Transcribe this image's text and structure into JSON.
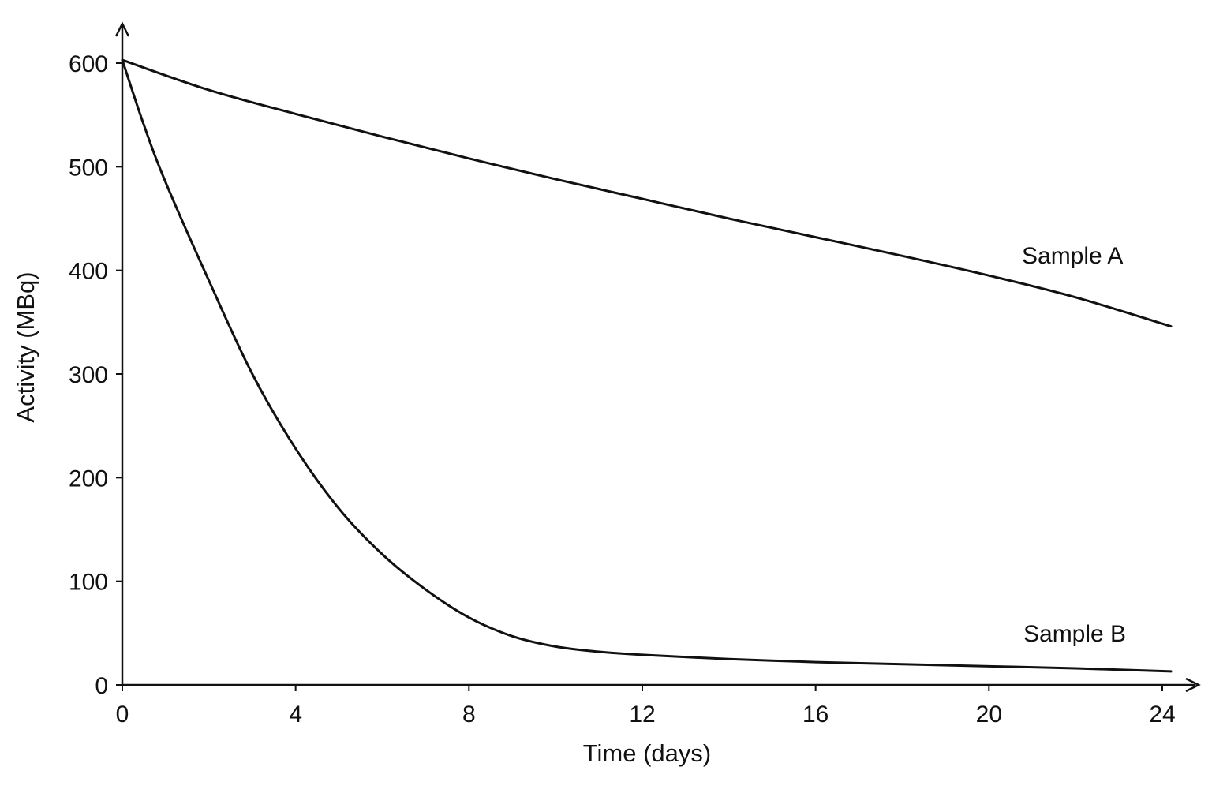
{
  "chart_data": {
    "type": "line",
    "title": "",
    "xlabel": "Time (days)",
    "ylabel": "Activity (MBq)",
    "xlim": [
      0,
      24
    ],
    "ylim": [
      0,
      600
    ],
    "grid": false,
    "legend": "none",
    "x_ticks": [
      "0",
      "4",
      "8",
      "12",
      "16",
      "20",
      "24"
    ],
    "y_ticks": [
      "0",
      "100",
      "200",
      "300",
      "400",
      "500",
      "600"
    ],
    "series": [
      {
        "name": "Sample A",
        "x": [
          0,
          2,
          4,
          6,
          8,
          10,
          12,
          14,
          16,
          18,
          20,
          22,
          24.2
        ],
        "y": [
          603,
          574,
          551,
          529,
          508,
          488,
          469,
          450,
          432,
          414,
          395,
          374,
          346
        ]
      },
      {
        "name": "Sample B",
        "x": [
          0,
          0.5,
          1,
          2,
          3,
          4,
          5,
          6,
          7,
          8,
          9,
          10,
          11,
          12,
          14,
          16,
          18,
          20,
          22,
          24.2
        ],
        "y": [
          603,
          540,
          485,
          390,
          300,
          228,
          170,
          126,
          92,
          65,
          47,
          37,
          32,
          29,
          25,
          22,
          20,
          18,
          16,
          13
        ]
      }
    ]
  }
}
